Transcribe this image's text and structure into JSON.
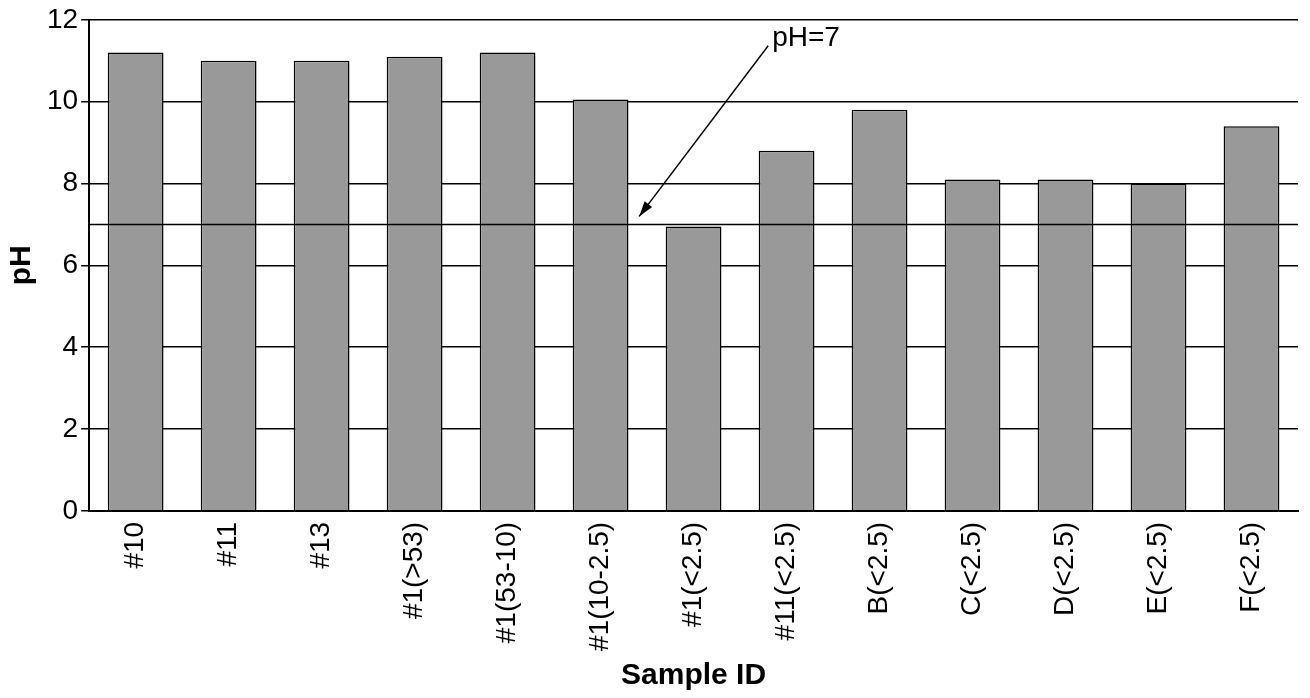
{
  "chart_data": {
    "type": "bar",
    "xlabel": "Sample ID",
    "ylabel": "pH",
    "categories": [
      "#10",
      "#11",
      "#13",
      "#1(>53)",
      "#1(53-10)",
      "#1(10-2.5)",
      "#1(<2.5)",
      "#11(<2.5)",
      "B(<2.5)",
      "C(<2.5)",
      "D(<2.5)",
      "E(<2.5)",
      "F(<2.5)"
    ],
    "values": [
      11.2,
      11.0,
      11.0,
      11.1,
      11.2,
      10.05,
      6.95,
      8.8,
      9.8,
      8.1,
      8.1,
      8.0,
      9.4
    ],
    "color": "#999999",
    "ylim": [
      0,
      12
    ],
    "yticks": [
      0,
      2,
      4,
      6,
      8,
      10,
      12
    ],
    "grid": "y",
    "legend": false,
    "ref_lines": [
      {
        "axis": "y",
        "value": 7,
        "label": "pH=7",
        "color": "#000000"
      }
    ]
  }
}
